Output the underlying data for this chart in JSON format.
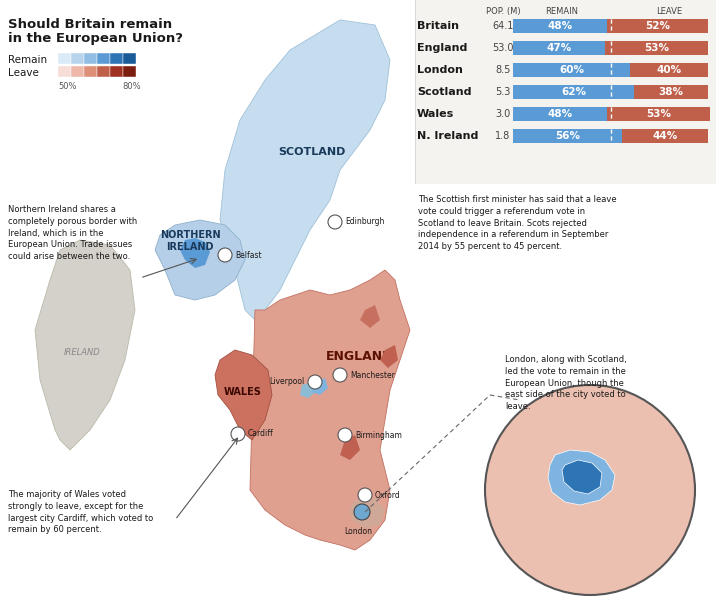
{
  "title_line1": "Should Britain remain",
  "title_line2": "in the European Union?",
  "legend_remain": "Remain",
  "legend_leave": "Leave",
  "legend_pct_low": "50%",
  "legend_pct_high": "80%",
  "col_pop": "POP. (M)",
  "col_remain": "REMAIN",
  "col_leave": "LEAVE",
  "rows": [
    {
      "label": "Britain",
      "pop": "64.1",
      "remain": 48,
      "leave": 52
    },
    {
      "label": "England",
      "pop": "53.0",
      "remain": 47,
      "leave": 53
    },
    {
      "label": "London",
      "pop": "8.5",
      "remain": 60,
      "leave": 40
    },
    {
      "label": "Scotland",
      "pop": "5.3",
      "remain": 62,
      "leave": 38
    },
    {
      "label": "Wales",
      "pop": "3.0",
      "remain": 48,
      "leave": 53
    },
    {
      "label": "N. Ireland",
      "pop": "1.8",
      "remain": 56,
      "leave": 44
    }
  ],
  "remain_color": "#5b9bd5",
  "leave_color": "#c0604a",
  "bg_color": "#f0eeea",
  "panel_bg": "#f5f3ef",
  "ireland_color": "#d4d0ca",
  "scotland_color": "#b8d4e8",
  "ni_color_main": "#a8c8e0",
  "ni_inner_color": "#5b9bd5",
  "england_color": "#e0a090",
  "wales_color": "#d08070",
  "sea_color": "#ffffff",
  "annotation_ni": "Northern Ireland shares a\ncompletely porous border with\nIreland, which is in the\nEuropean Union. Trade issues\ncould arise between the two.",
  "annotation_scotland": "The Scottish first minister has said that a leave\nvote could trigger a referendum vote in\nScotland to leave Britain. Scots rejected\nindependence in a referendum in September\n2014 by 55 percent to 45 percent.",
  "annotation_wales": "The majority of Wales voted\nstrongly to leave, except for the\nlargest city Cardiff, which voted to\nremain by 60 percent.",
  "annotation_london": "London, along with Scotland,\nled the vote to remain in the\nEuropean Union, though the\neast side of the city voted to\nleave.",
  "remain_swatches": [
    "#daeaf7",
    "#b8d4ed",
    "#8fbde3",
    "#5b9bd5",
    "#2e75b6",
    "#1a5c9a"
  ],
  "leave_swatches": [
    "#f7ddd7",
    "#edb8a8",
    "#de8f78",
    "#c0604a",
    "#a03020",
    "#7b1e10"
  ],
  "text_dark": "#1a1a1a",
  "text_mid": "#555555",
  "text_light": "#888888"
}
